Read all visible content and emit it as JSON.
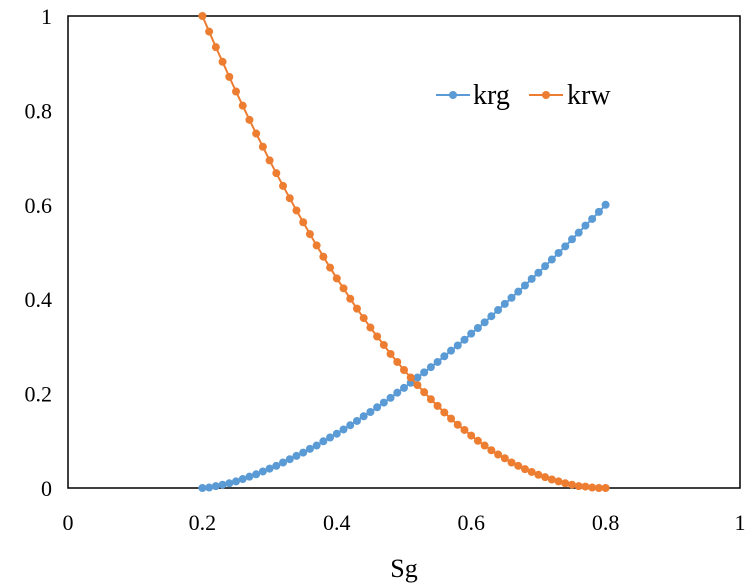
{
  "chart_data": {
    "type": "line",
    "title": "",
    "xlabel": "Sg",
    "ylabel": "",
    "xlim": [
      0,
      1
    ],
    "ylim": [
      0,
      1
    ],
    "xticks": [
      "0",
      "0.2",
      "0.4",
      "0.6",
      "0.8",
      "1"
    ],
    "yticks": [
      "0",
      "0.2",
      "0.4",
      "0.6",
      "0.8",
      "1"
    ],
    "grid": false,
    "legend": "top-right",
    "markers": true,
    "x": [
      0.2,
      0.21,
      0.22,
      0.23,
      0.24,
      0.25,
      0.26,
      0.27,
      0.28,
      0.29,
      0.3,
      0.31,
      0.32,
      0.33,
      0.34,
      0.35,
      0.36,
      0.37,
      0.38,
      0.39,
      0.4,
      0.41,
      0.42,
      0.43,
      0.44,
      0.45,
      0.46,
      0.47,
      0.48,
      0.49,
      0.5,
      0.51,
      0.52,
      0.53,
      0.54,
      0.55,
      0.56,
      0.57,
      0.58,
      0.59,
      0.6,
      0.61,
      0.62,
      0.63,
      0.64,
      0.65,
      0.66,
      0.67,
      0.68,
      0.69,
      0.7,
      0.71,
      0.72,
      0.73,
      0.74,
      0.75,
      0.76,
      0.77,
      0.78,
      0.79,
      0.8
    ],
    "series": [
      {
        "name": "krg",
        "color": "#5b9bd5",
        "values": [
          0,
          0.001,
          0.004,
          0.007,
          0.01,
          0.014,
          0.019,
          0.024,
          0.029,
          0.035,
          0.041,
          0.047,
          0.054,
          0.061,
          0.068,
          0.075,
          0.083,
          0.09,
          0.099,
          0.107,
          0.115,
          0.124,
          0.133,
          0.142,
          0.152,
          0.161,
          0.171,
          0.181,
          0.191,
          0.202,
          0.212,
          0.223,
          0.234,
          0.245,
          0.256,
          0.267,
          0.279,
          0.291,
          0.302,
          0.314,
          0.327,
          0.339,
          0.351,
          0.364,
          0.377,
          0.39,
          0.403,
          0.416,
          0.429,
          0.443,
          0.456,
          0.47,
          0.484,
          0.498,
          0.512,
          0.527,
          0.541,
          0.556,
          0.57,
          0.585,
          0.6
        ]
      },
      {
        "name": "krw",
        "color": "#ed7d31",
        "values": [
          1,
          0.967,
          0.934,
          0.903,
          0.871,
          0.84,
          0.81,
          0.78,
          0.751,
          0.723,
          0.694,
          0.667,
          0.64,
          0.614,
          0.588,
          0.563,
          0.538,
          0.514,
          0.49,
          0.467,
          0.444,
          0.423,
          0.401,
          0.38,
          0.36,
          0.34,
          0.321,
          0.303,
          0.284,
          0.267,
          0.25,
          0.234,
          0.218,
          0.203,
          0.188,
          0.174,
          0.16,
          0.147,
          0.134,
          0.123,
          0.111,
          0.1,
          0.09,
          0.08,
          0.071,
          0.063,
          0.054,
          0.047,
          0.04,
          0.034,
          0.028,
          0.023,
          0.018,
          0.014,
          0.01,
          0.007,
          0.004,
          0.003,
          0.001,
          0,
          0
        ]
      }
    ]
  }
}
